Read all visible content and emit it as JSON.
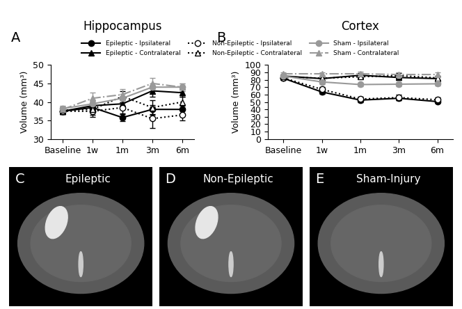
{
  "chart_data": [
    {
      "type": "line",
      "panel": "A",
      "title": "Hippocampus",
      "y_label": "Volume (mm³)",
      "categories": [
        "Baseline",
        "1w",
        "1m",
        "3m",
        "6m"
      ],
      "ylim": [
        30,
        50
      ],
      "yticks": [
        30,
        35,
        40,
        45,
        50
      ],
      "series": [
        {
          "name": "Epileptic - Ipsilateral",
          "color": "#000000",
          "marker": "circle",
          "line_style": "solid",
          "values": [
            37.5,
            38.5,
            35.8,
            38.0,
            38.0
          ],
          "errors": [
            0.8,
            1.2,
            1.0,
            1.2,
            1.0
          ]
        },
        {
          "name": "Epileptic - Contralateral",
          "color": "#000000",
          "marker": "triangle",
          "line_style": "solid",
          "values": [
            37.5,
            39.0,
            39.5,
            43.0,
            42.5
          ],
          "errors": [
            0.8,
            1.0,
            1.2,
            1.5,
            1.0
          ]
        },
        {
          "name": "Non-Epileptic - Ipsilateral",
          "color": "#000000",
          "marker": "open circle",
          "line_style": "dotted",
          "values": [
            37.5,
            37.5,
            38.5,
            35.5,
            36.5
          ],
          "errors": [
            0.8,
            1.5,
            1.5,
            2.5,
            1.5
          ]
        },
        {
          "name": "Non-Epileptic - Contralateral",
          "color": "#000000",
          "marker": "open triangle",
          "line_style": "dotted",
          "values": [
            37.8,
            38.0,
            41.5,
            38.5,
            40.0
          ],
          "errors": [
            0.8,
            1.5,
            1.5,
            2.0,
            1.5
          ]
        },
        {
          "name": "Sham - Ipsilateral",
          "color": "#999999",
          "marker": "circle",
          "line_style": "solid",
          "values": [
            38.2,
            39.5,
            41.0,
            44.0,
            44.0
          ],
          "errors": [
            0.8,
            1.2,
            1.2,
            1.0,
            1.0
          ]
        },
        {
          "name": "Sham - Contralateral",
          "color": "#999999",
          "marker": "triangle",
          "line_style": "dashdot",
          "values": [
            38.0,
            41.0,
            42.0,
            45.0,
            44.0
          ],
          "errors": [
            0.8,
            1.5,
            1.5,
            1.5,
            1.0
          ]
        }
      ]
    },
    {
      "type": "line",
      "panel": "B",
      "title": "Cortex",
      "y_label": "Volume (mm³)",
      "categories": [
        "Baseline",
        "1w",
        "1m",
        "3m",
        "6m"
      ],
      "ylim": [
        0,
        100
      ],
      "yticks": [
        0,
        10,
        20,
        30,
        40,
        50,
        60,
        70,
        80,
        90,
        100
      ],
      "series": [
        {
          "name": "Epileptic - Ipsilateral",
          "color": "#000000",
          "marker": "circle",
          "line_style": "solid",
          "values": [
            82.0,
            63.5,
            52.5,
            55.0,
            50.5
          ],
          "errors": [
            2.0,
            3.0,
            2.5,
            2.5,
            2.0
          ]
        },
        {
          "name": "Epileptic - Contralateral",
          "color": "#000000",
          "marker": "triangle",
          "line_style": "solid",
          "values": [
            85.0,
            81.5,
            86.0,
            83.0,
            81.5
          ],
          "errors": [
            2.0,
            2.5,
            2.5,
            3.0,
            2.5
          ]
        },
        {
          "name": "Non-Epileptic - Ipsilateral",
          "color": "#000000",
          "marker": "open circle",
          "line_style": "dotted",
          "values": [
            82.5,
            67.0,
            54.0,
            56.0,
            53.0
          ],
          "errors": [
            2.0,
            3.5,
            3.0,
            3.5,
            3.0
          ]
        },
        {
          "name": "Non-Epileptic - Contralateral",
          "color": "#000000",
          "marker": "open triangle",
          "line_style": "dotted",
          "values": [
            84.0,
            82.0,
            84.0,
            85.5,
            82.5
          ],
          "errors": [
            2.0,
            2.5,
            2.5,
            3.0,
            2.5
          ]
        },
        {
          "name": "Sham - Ipsilateral",
          "color": "#999999",
          "marker": "circle",
          "line_style": "solid",
          "values": [
            85.0,
            77.0,
            73.5,
            74.0,
            74.5
          ],
          "errors": [
            2.0,
            3.0,
            2.5,
            3.0,
            2.5
          ]
        },
        {
          "name": "Sham - Contralateral",
          "color": "#999999",
          "marker": "triangle",
          "line_style": "dashdot",
          "values": [
            88.0,
            88.0,
            88.0,
            87.0,
            87.0
          ],
          "errors": [
            2.0,
            2.0,
            2.5,
            2.5,
            2.5
          ]
        }
      ]
    }
  ],
  "images": [
    {
      "panel": "C",
      "label": "Epileptic"
    },
    {
      "panel": "D",
      "label": "Non-Epileptic"
    },
    {
      "panel": "E",
      "label": "Sham-Injury"
    }
  ]
}
